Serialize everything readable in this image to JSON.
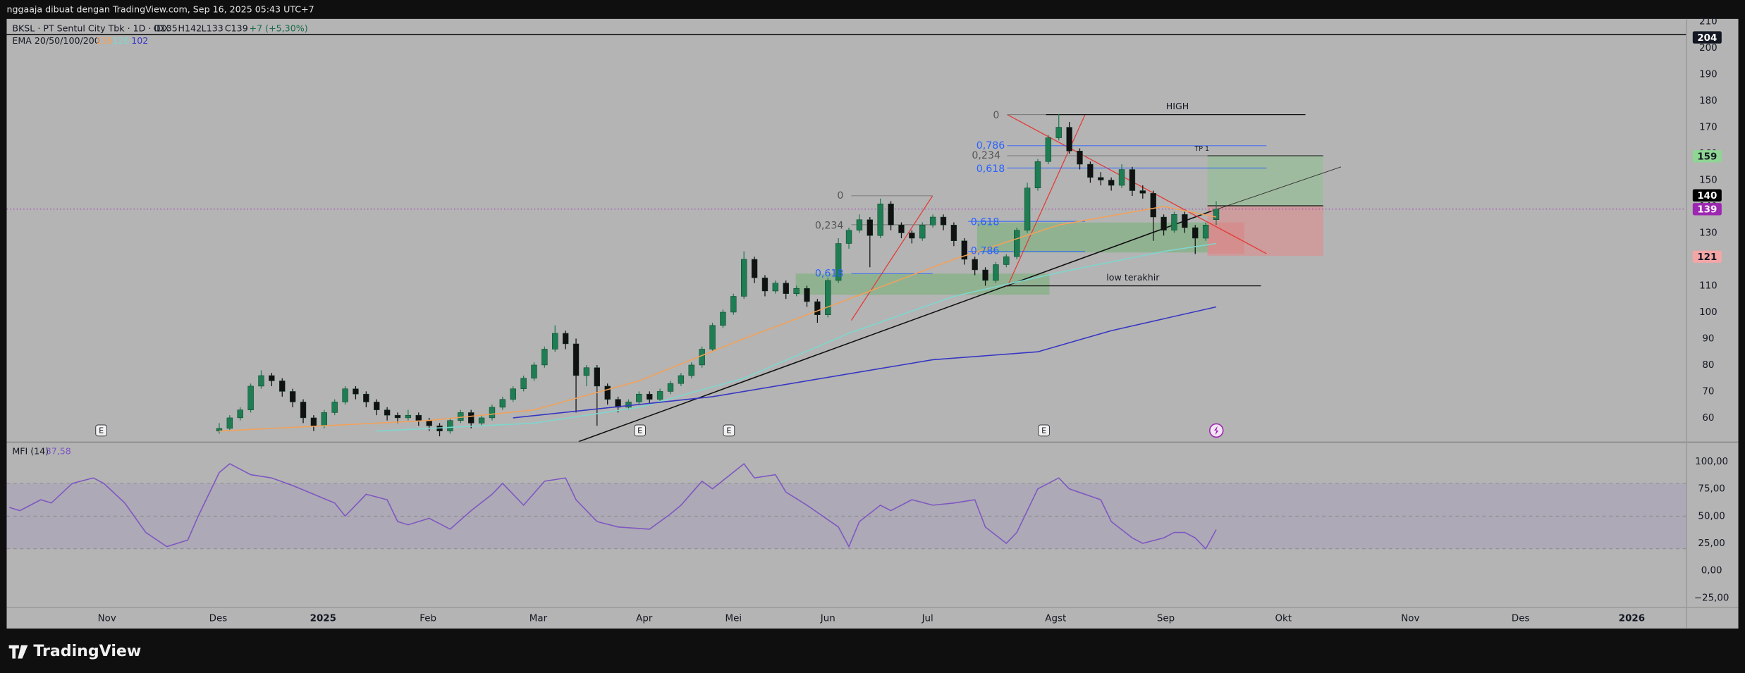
{
  "header": {
    "caption": "nggaaja dibuat dengan TradingView.com, Sep 16, 2025 05:43 UTC+7"
  },
  "legend": {
    "symbol": "BKSL · PT Sentul City Tbk · 1D · IDX",
    "ohlc": [
      "O135",
      "H142",
      "L133",
      "C139"
    ],
    "change": "+7 (+5,30%)",
    "ema_label": "EMA 20/50/100/200"
  },
  "price": {
    "ylim": [
      51,
      211
    ],
    "yticks": [
      60,
      70,
      80,
      90,
      100,
      110,
      120,
      130,
      140,
      150,
      160,
      170,
      180,
      190,
      200,
      210
    ],
    "candles": [
      [
        55,
        58,
        54,
        56
      ],
      [
        56,
        61,
        55,
        60
      ],
      [
        60,
        64,
        59,
        63
      ],
      [
        63,
        73,
        62,
        72
      ],
      [
        72,
        78,
        71,
        76
      ],
      [
        76,
        77,
        72,
        74
      ],
      [
        74,
        75,
        68,
        70
      ],
      [
        70,
        71,
        64,
        66
      ],
      [
        66,
        67,
        58,
        60
      ],
      [
        60,
        61,
        55,
        57
      ],
      [
        57,
        63,
        56,
        62
      ],
      [
        62,
        67,
        61,
        66
      ],
      [
        66,
        72,
        65,
        71
      ],
      [
        71,
        72,
        67,
        69
      ],
      [
        69,
        70,
        64,
        66
      ],
      [
        66,
        67,
        61,
        63
      ],
      [
        63,
        64,
        59,
        61
      ],
      [
        61,
        62,
        58,
        60
      ],
      [
        60,
        63,
        59,
        61
      ],
      [
        61,
        62,
        57,
        59
      ],
      [
        59,
        60,
        55,
        57
      ],
      [
        57,
        58,
        53,
        55
      ],
      [
        55,
        60,
        54,
        59
      ],
      [
        59,
        63,
        58,
        62
      ],
      [
        62,
        63,
        56,
        58
      ],
      [
        58,
        61,
        57,
        60
      ],
      [
        60,
        65,
        59,
        64
      ],
      [
        64,
        68,
        63,
        67
      ],
      [
        67,
        72,
        66,
        71
      ],
      [
        71,
        76,
        70,
        75
      ],
      [
        75,
        81,
        74,
        80
      ],
      [
        80,
        87,
        79,
        86
      ],
      [
        86,
        95,
        85,
        92
      ],
      [
        92,
        93,
        86,
        88
      ],
      [
        88,
        90,
        62,
        76
      ],
      [
        76,
        80,
        72,
        79
      ],
      [
        79,
        80,
        57,
        72
      ],
      [
        72,
        73,
        65,
        67
      ],
      [
        67,
        68,
        62,
        64
      ],
      [
        64,
        67,
        63,
        66
      ],
      [
        66,
        70,
        65,
        69
      ],
      [
        69,
        70,
        65,
        67
      ],
      [
        67,
        71,
        66,
        70
      ],
      [
        70,
        74,
        69,
        73
      ],
      [
        73,
        77,
        72,
        76
      ],
      [
        76,
        81,
        75,
        80
      ],
      [
        80,
        87,
        79,
        86
      ],
      [
        86,
        96,
        85,
        95
      ],
      [
        95,
        101,
        94,
        100
      ],
      [
        100,
        107,
        99,
        106
      ],
      [
        106,
        123,
        105,
        120
      ],
      [
        120,
        121,
        111,
        113
      ],
      [
        113,
        114,
        106,
        108
      ],
      [
        108,
        112,
        107,
        111
      ],
      [
        111,
        112,
        105,
        107
      ],
      [
        107,
        110,
        106,
        109
      ],
      [
        109,
        110,
        102,
        104
      ],
      [
        104,
        105,
        96,
        99
      ],
      [
        99,
        113,
        98,
        112
      ],
      [
        112,
        128,
        111,
        126
      ],
      [
        126,
        132,
        124,
        131
      ],
      [
        131,
        137,
        130,
        135
      ],
      [
        135,
        136,
        117,
        129
      ],
      [
        129,
        143,
        128,
        141
      ],
      [
        141,
        142,
        131,
        133
      ],
      [
        133,
        134,
        128,
        130
      ],
      [
        130,
        131,
        126,
        128
      ],
      [
        128,
        134,
        127,
        133
      ],
      [
        133,
        137,
        132,
        136
      ],
      [
        136,
        137,
        131,
        133
      ],
      [
        133,
        134,
        125,
        127
      ],
      [
        127,
        128,
        118,
        120
      ],
      [
        120,
        121,
        114,
        116
      ],
      [
        116,
        117,
        110,
        112
      ],
      [
        112,
        119,
        111,
        118
      ],
      [
        118,
        122,
        117,
        121
      ],
      [
        121,
        132,
        120,
        131
      ],
      [
        131,
        149,
        130,
        147
      ],
      [
        147,
        158,
        146,
        157
      ],
      [
        157,
        167,
        156,
        166
      ],
      [
        166,
        175,
        165,
        170
      ],
      [
        170,
        172,
        160,
        161
      ],
      [
        161,
        162,
        154,
        156
      ],
      [
        156,
        157,
        149,
        151
      ],
      [
        151,
        153,
        148,
        150
      ],
      [
        150,
        151,
        146,
        148
      ],
      [
        148,
        156,
        147,
        154
      ],
      [
        154,
        155,
        144,
        146
      ],
      [
        146,
        148,
        143,
        145
      ],
      [
        145,
        146,
        127,
        136
      ],
      [
        136,
        137,
        129,
        131
      ],
      [
        131,
        138,
        130,
        137
      ],
      [
        137,
        138,
        130,
        132
      ],
      [
        132,
        133,
        122,
        128
      ],
      [
        128,
        134,
        127,
        133
      ],
      [
        135,
        142,
        133,
        139
      ]
    ],
    "up_color": "#1e7d52",
    "down_color": "#111111",
    "ema": [
      {
        "color": "#f2a15a",
        "x": [
          0,
          10,
          20,
          30,
          40,
          50,
          60,
          70,
          80,
          90,
          95
        ],
        "values": [
          55,
          57,
          59,
          63,
          74,
          90,
          105,
          120,
          133,
          140,
          136
        ]
      },
      {
        "color": "#7fd6cf",
        "x": [
          15,
          30,
          40,
          50,
          60,
          70,
          80,
          90,
          95
        ],
        "values": [
          55,
          58,
          64,
          75,
          92,
          106,
          115,
          123,
          126
        ]
      },
      {
        "color": "#3636c4",
        "x": [
          28,
          47,
          68,
          78,
          85,
          95
        ],
        "values": [
          60,
          68,
          82,
          85,
          93,
          102
        ]
      }
    ],
    "tags": [
      {
        "value": 204,
        "color": "#131722"
      },
      {
        "value": 159,
        "color": "#8fd694"
      },
      {
        "value": 140,
        "color": "#000000"
      },
      {
        "value": 139,
        "color": "#9c27b0"
      },
      {
        "value": 121,
        "color": "#f4a6a6"
      }
    ]
  },
  "annotations": [
    "HIGH",
    "TP 1",
    "low terakhir",
    "0",
    "0,786",
    "0,234",
    "0,618",
    "0",
    "0,234",
    "0,618",
    "0,786",
    "0,618"
  ],
  "earnings_markers": [
    "E",
    "E",
    "E",
    "E"
  ],
  "mfi": {
    "label": "MFI (14)",
    "legend_value": "37,58",
    "color": "#7e57c2",
    "ylim": [
      -32.7,
      117.3
    ],
    "levels": [
      80,
      50,
      20
    ],
    "yticks": [
      {
        "value": 100,
        "label": "100,00"
      },
      {
        "value": 75,
        "label": "75,00"
      },
      {
        "value": 50,
        "label": "50,00"
      },
      {
        "value": 25,
        "label": "25,00"
      },
      {
        "value": 0,
        "label": "0,00"
      },
      {
        "value": -25,
        "label": "−25,00"
      }
    ],
    "x": [
      -20,
      -19,
      -17,
      -16,
      -14,
      -12,
      -11,
      -9,
      -7,
      -5,
      -3,
      -2,
      0,
      1,
      3,
      5,
      7,
      9,
      11,
      12,
      14,
      16,
      17,
      18,
      20,
      22,
      24,
      26,
      27,
      29,
      31,
      33,
      34,
      36,
      38,
      41,
      43,
      44,
      46,
      47,
      50,
      51,
      53,
      54,
      56,
      59,
      60,
      61,
      63,
      64,
      66,
      68,
      70,
      72,
      73,
      75,
      76,
      78,
      80,
      81,
      84,
      85,
      87,
      88,
      90,
      91,
      92,
      93,
      94,
      95
    ],
    "values": [
      58,
      55,
      65,
      62,
      80,
      85,
      80,
      62,
      35,
      22,
      28,
      50,
      90,
      98,
      88,
      85,
      78,
      70,
      62,
      50,
      70,
      65,
      45,
      42,
      48,
      38,
      55,
      70,
      80,
      60,
      82,
      85,
      65,
      45,
      40,
      38,
      52,
      60,
      82,
      75,
      98,
      85,
      88,
      72,
      60,
      40,
      22,
      45,
      60,
      55,
      65,
      60,
      62,
      65,
      40,
      25,
      35,
      75,
      85,
      75,
      65,
      45,
      30,
      25,
      30,
      35,
      35,
      30,
      20,
      37.58
    ]
  },
  "time_axis": [
    {
      "value": -10.7,
      "label": "Nov"
    },
    {
      "value": -0.1,
      "label": "Des"
    },
    {
      "value": 9.9,
      "label": "2025"
    },
    {
      "value": 19.9,
      "label": "Feb"
    },
    {
      "value": 30.4,
      "label": "Mar"
    },
    {
      "value": 40.5,
      "label": "Apr"
    },
    {
      "value": 49,
      "label": "Mei"
    },
    {
      "value": 58,
      "label": "Jun"
    },
    {
      "value": 67.5,
      "label": "Jul"
    },
    {
      "value": 79.7,
      "label": "Agst"
    },
    {
      "value": 90.2,
      "label": "Sep"
    },
    {
      "value": 101.4,
      "label": "Okt"
    },
    {
      "value": 113.5,
      "label": "Nov"
    },
    {
      "value": 124,
      "label": "Des"
    },
    {
      "value": 134.6,
      "label": "2026"
    }
  ],
  "footer": {
    "logo": "TradingView"
  }
}
